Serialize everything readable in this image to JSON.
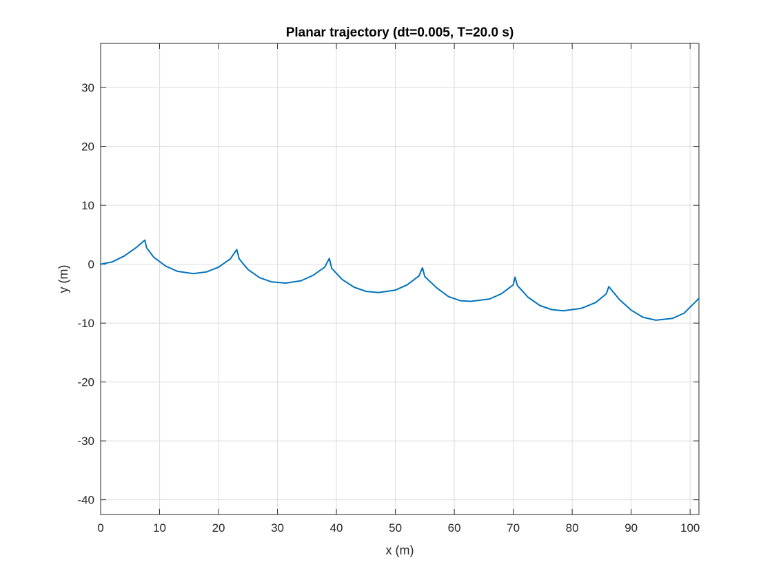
{
  "chart_data": {
    "type": "line",
    "title": "Planar trajectory (dt=0.005, T=20.0 s)",
    "xlabel": "x (m)",
    "ylabel": "y (m)",
    "xlim": [
      0,
      101.5
    ],
    "ylim": [
      -42.5,
      37.5
    ],
    "xticks": [
      0,
      10,
      20,
      30,
      40,
      50,
      60,
      70,
      80,
      90,
      100
    ],
    "yticks": [
      -40,
      -30,
      -20,
      -10,
      0,
      10,
      20,
      30
    ],
    "grid": true,
    "line_color": "#0072BD",
    "series": [
      {
        "x": [
          0,
          2,
          4,
          6,
          7.5,
          7.8,
          9,
          11,
          13,
          15.7,
          18,
          20,
          22,
          23.1,
          23.5,
          25,
          27,
          29,
          31.4,
          34,
          36,
          38,
          38.8,
          39.2,
          41,
          43,
          45,
          47.1,
          50,
          52,
          54,
          54.6,
          55,
          57,
          59,
          61,
          62.8,
          66,
          68,
          70,
          70.3,
          70.7,
          72.5,
          74.5,
          76.5,
          78.5,
          81.5,
          84,
          85.8,
          86.2,
          88,
          90,
          92,
          94.2,
          97,
          99,
          101.5
        ],
        "y": [
          0,
          0.4,
          1.4,
          2.8,
          4.1,
          2.8,
          1.2,
          -0.3,
          -1.2,
          -1.6,
          -1.3,
          -0.5,
          0.9,
          2.5,
          0.9,
          -0.9,
          -2.3,
          -3.0,
          -3.2,
          -2.8,
          -1.9,
          -0.5,
          1.0,
          -0.7,
          -2.6,
          -3.9,
          -4.6,
          -4.8,
          -4.4,
          -3.5,
          -2.0,
          -0.6,
          -2.1,
          -4.0,
          -5.5,
          -6.2,
          -6.3,
          -5.9,
          -5.0,
          -3.5,
          -2.2,
          -3.6,
          -5.6,
          -7.0,
          -7.7,
          -7.9,
          -7.5,
          -6.5,
          -5.0,
          -3.8,
          -6.0,
          -7.8,
          -9.0,
          -9.5,
          -9.2,
          -8.3,
          -5.8
        ]
      }
    ]
  }
}
